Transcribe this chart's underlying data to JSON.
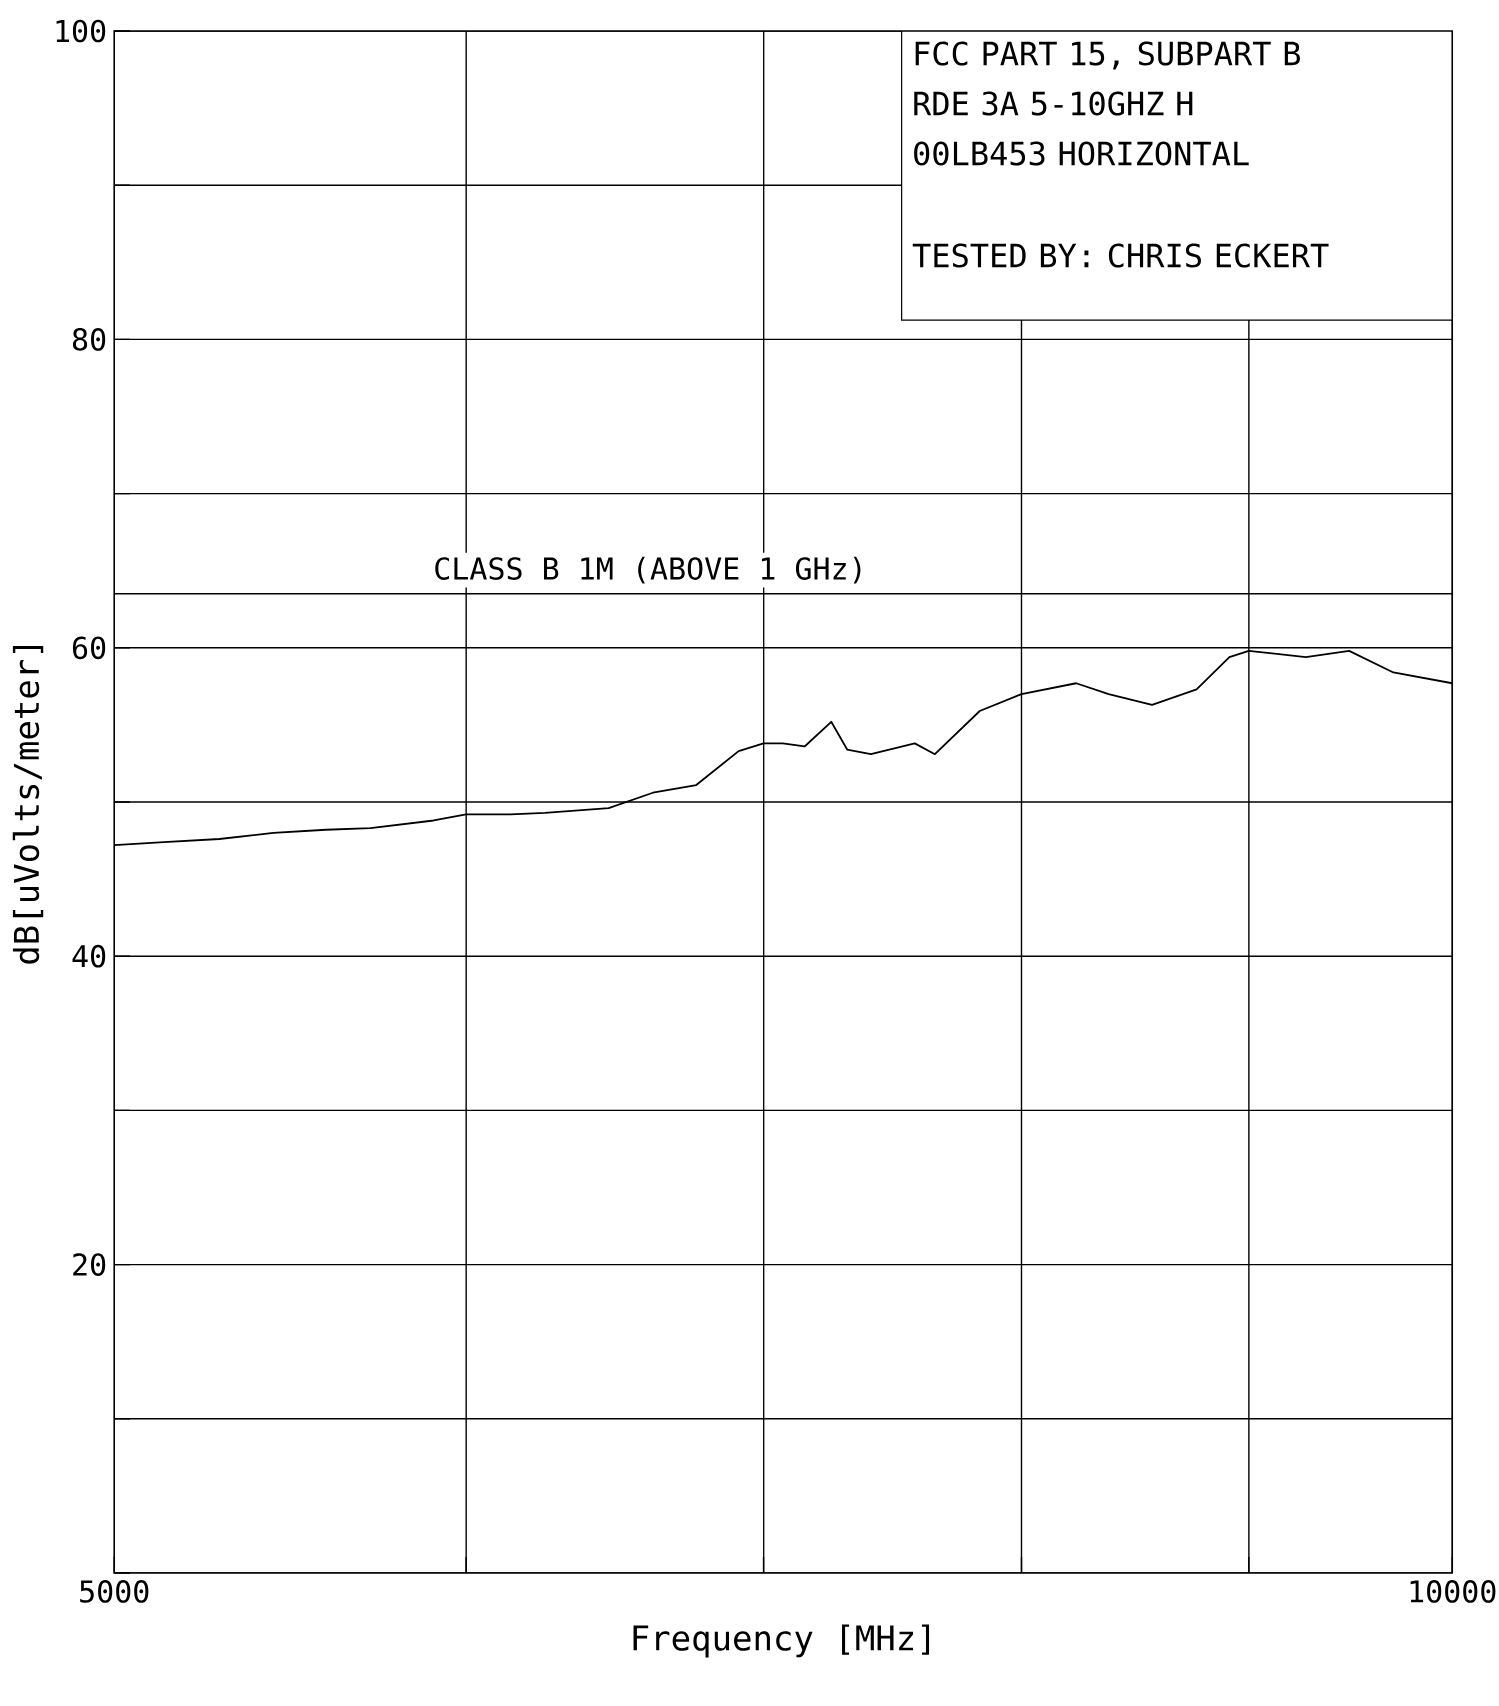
{
  "chart_data": {
    "type": "line",
    "xlabel": "Frequency [MHz]",
    "ylabel": "dB[uVolts/meter]",
    "log": "x",
    "grid": true,
    "marker": "none",
    "line_style": "solid",
    "xlim": [
      5000,
      10000
    ],
    "ylim": [
      0,
      100
    ],
    "xticks": [
      5000,
      {
        "value": 6000,
        "label": null
      },
      {
        "value": 7000,
        "label": null
      },
      {
        "value": 8000,
        "label": null
      },
      {
        "value": 9000,
        "label": null
      },
      10000
    ],
    "yticks": [
      {
        "value": 0,
        "label": null
      },
      {
        "value": 10,
        "label": null
      },
      20,
      {
        "value": 30,
        "label": null
      },
      40,
      {
        "value": 50,
        "label": null
      },
      60,
      {
        "value": 70,
        "label": null
      },
      80,
      {
        "value": 90,
        "label": null
      },
      100
    ],
    "ref_lines": [
      {
        "axis": "y",
        "value": 63.5,
        "label": "CLASS B 1M (ABOVE 1 GHz)",
        "color": "#000000"
      }
    ],
    "annotations": [
      "FCC PART 15, SUBPART B",
      "RDE 3A 5-10GHZ H",
      "00LB453 HORIZONTAL",
      "TESTED BY: CHRIS ECKERT"
    ],
    "series": [
      {
        "color": "#000000",
        "x": [
          5000,
          5130,
          5280,
          5430,
          5580,
          5710,
          5900,
          6000,
          6140,
          6250,
          6460,
          6610,
          6760,
          6910,
          7000,
          7070,
          7150,
          7250,
          7310,
          7400,
          7570,
          7650,
          7830,
          8000,
          8230,
          8370,
          8560,
          8760,
          8910,
          9000,
          9270,
          9480,
          9700,
          10000
        ],
        "values": [
          47.2,
          47.4,
          47.6,
          48.0,
          48.2,
          48.3,
          48.8,
          49.2,
          49.2,
          49.3,
          49.6,
          50.6,
          51.1,
          53.3,
          53.8,
          53.8,
          53.6,
          55.2,
          53.4,
          53.1,
          53.8,
          53.1,
          55.9,
          57.0,
          57.7,
          57.0,
          56.3,
          57.3,
          59.4,
          59.8,
          59.4,
          59.8,
          58.4,
          57.7
        ]
      }
    ]
  }
}
